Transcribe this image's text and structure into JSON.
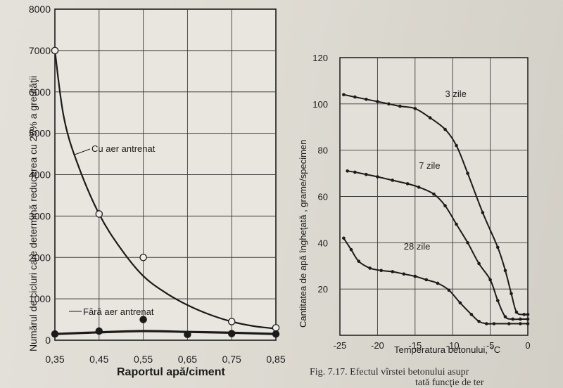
{
  "chart_data": [
    {
      "type": "scatter",
      "ylabel": "Numărul de cicluri care determină reducerea cu 25% a greutăţii",
      "xlabel": "Raportul apă/ciment",
      "x_ticks": [
        "0,35",
        "0,45",
        "0,55",
        "0,65",
        "0,75",
        "0,85"
      ],
      "y_ticks": [
        "0",
        "1000",
        "2000",
        "3000",
        "4000",
        "5000",
        "6000",
        "7000",
        "8000"
      ],
      "xlim": [
        0.35,
        0.85
      ],
      "ylim": [
        0,
        8000
      ],
      "grid": true,
      "series": [
        {
          "name": "Cu aer antrenat",
          "marker": "open-circle",
          "points": [
            [
              0.35,
              7000
            ],
            [
              0.45,
              3050
            ],
            [
              0.55,
              2000
            ],
            [
              0.75,
              450
            ],
            [
              0.85,
              300
            ]
          ],
          "curve": [
            [
              0.35,
              7000
            ],
            [
              0.37,
              5400
            ],
            [
              0.4,
              4300
            ],
            [
              0.45,
              3050
            ],
            [
              0.5,
              2200
            ],
            [
              0.55,
              1550
            ],
            [
              0.6,
              1150
            ],
            [
              0.65,
              850
            ],
            [
              0.7,
              620
            ],
            [
              0.75,
              450
            ],
            [
              0.8,
              340
            ],
            [
              0.85,
              280
            ]
          ]
        },
        {
          "name": "Fără aer antrenat",
          "marker": "filled-circle",
          "points": [
            [
              0.35,
              150
            ],
            [
              0.45,
              220
            ],
            [
              0.55,
              500
            ],
            [
              0.65,
              140
            ],
            [
              0.75,
              160
            ],
            [
              0.85,
              150
            ]
          ],
          "curve": [
            [
              0.35,
              150
            ],
            [
              0.45,
              190
            ],
            [
              0.55,
              220
            ],
            [
              0.65,
              200
            ],
            [
              0.75,
              180
            ],
            [
              0.85,
              150
            ]
          ]
        }
      ]
    },
    {
      "type": "line",
      "ylabel": "Cantitatea de apă îngheţată , grame/specimen",
      "xlabel": "Temperatura betonului, °C",
      "x_ticks": [
        "-25",
        "-20",
        "-15",
        "-10",
        "-5",
        "0"
      ],
      "y_ticks": [
        "20",
        "40",
        "60",
        "80",
        "100",
        "120"
      ],
      "xlim": [
        -25,
        0
      ],
      "ylim": [
        0,
        120
      ],
      "grid": true,
      "series": [
        {
          "name": "3 zile",
          "points": [
            [
              -24.5,
              104
            ],
            [
              -23,
              103
            ],
            [
              -21.5,
              102
            ],
            [
              -20,
              101
            ],
            [
              -18.5,
              100
            ],
            [
              -17,
              99
            ],
            [
              -15,
              98
            ],
            [
              -13,
              94
            ],
            [
              -11,
              89
            ],
            [
              -9.5,
              82
            ],
            [
              -8,
              70
            ],
            [
              -6,
              53
            ],
            [
              -4,
              38
            ],
            [
              -3,
              28
            ],
            [
              -2.2,
              18
            ],
            [
              -1.5,
              10
            ],
            [
              -0.5,
              9
            ],
            [
              0,
              9
            ]
          ]
        },
        {
          "name": "7 zile",
          "points": [
            [
              -24,
              71
            ],
            [
              -23,
              70.5
            ],
            [
              -21.5,
              69.5
            ],
            [
              -20,
              68.5
            ],
            [
              -18,
              67
            ],
            [
              -16,
              65.5
            ],
            [
              -14.5,
              64
            ],
            [
              -12.5,
              61
            ],
            [
              -11,
              56
            ],
            [
              -9.5,
              48
            ],
            [
              -8,
              40
            ],
            [
              -6.5,
              31
            ],
            [
              -5,
              24
            ],
            [
              -4,
              15
            ],
            [
              -3,
              8
            ],
            [
              -2,
              7
            ],
            [
              -1,
              7
            ],
            [
              0,
              7
            ]
          ]
        },
        {
          "name": "28 zile",
          "points": [
            [
              -24.5,
              42
            ],
            [
              -23.5,
              37
            ],
            [
              -22.5,
              32
            ],
            [
              -21,
              29
            ],
            [
              -19.5,
              28
            ],
            [
              -18,
              27.5
            ],
            [
              -16.5,
              26.5
            ],
            [
              -15,
              25.5
            ],
            [
              -13.5,
              24
            ],
            [
              -12,
              22.5
            ],
            [
              -10.5,
              19.5
            ],
            [
              -9,
              14
            ],
            [
              -7.5,
              9
            ],
            [
              -6.5,
              6
            ],
            [
              -5.5,
              5
            ],
            [
              -4.5,
              5
            ],
            [
              -2.5,
              5
            ],
            [
              -1,
              5
            ],
            [
              0,
              5
            ]
          ]
        }
      ]
    }
  ],
  "caption": {
    "line1": "Fig. 7.17. Efectul vîrstei betonului asupr",
    "line2": "tată funcţie de ter"
  }
}
